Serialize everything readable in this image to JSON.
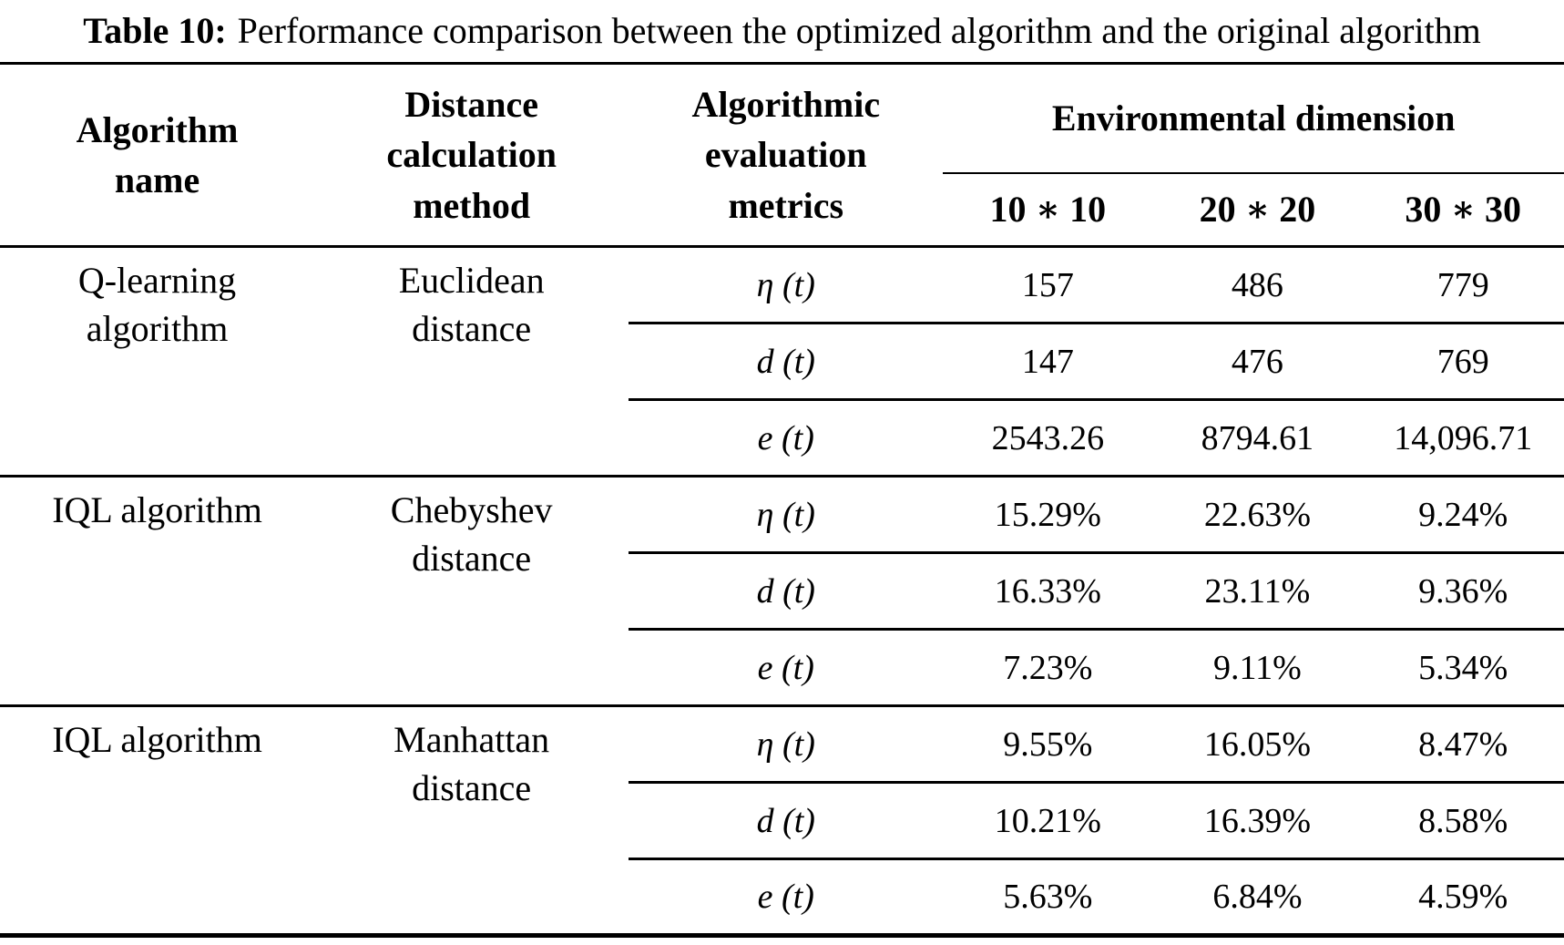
{
  "title": {
    "label": "Table 10:",
    "text": "Performance comparison between the optimized algorithm and the original algorithm"
  },
  "table": {
    "headers": {
      "algorithm_name": "Algorithm name",
      "distance_method": "Distance calculation method",
      "metrics": "Algorithmic evaluation metrics",
      "env_dimension": "Environmental dimension",
      "dims": [
        "10 ∗ 10",
        "20 ∗ 20",
        "30 ∗ 30"
      ]
    },
    "groups": [
      {
        "name": "Q-learning algorithm",
        "distance": "Euclidean distance",
        "rows": [
          {
            "metric": "η (t)",
            "values": [
              "157",
              "486",
              "779"
            ]
          },
          {
            "metric": "d (t)",
            "values": [
              "147",
              "476",
              "769"
            ]
          },
          {
            "metric": "e (t)",
            "values": [
              "2543.26",
              "8794.61",
              "14,096.71"
            ]
          }
        ]
      },
      {
        "name": "IQL algorithm",
        "distance": "Chebyshev distance",
        "rows": [
          {
            "metric": "η (t)",
            "values": [
              "15.29%",
              "22.63%",
              "9.24%"
            ]
          },
          {
            "metric": "d (t)",
            "values": [
              "16.33%",
              "23.11%",
              "9.36%"
            ]
          },
          {
            "metric": "e (t)",
            "values": [
              "7.23%",
              "9.11%",
              "5.34%"
            ]
          }
        ]
      },
      {
        "name": "IQL algorithm",
        "distance": "Manhattan distance",
        "rows": [
          {
            "metric": "η (t)",
            "values": [
              "9.55%",
              "16.05%",
              "8.47%"
            ]
          },
          {
            "metric": "d (t)",
            "values": [
              "10.21%",
              "16.39%",
              "8.58%"
            ]
          },
          {
            "metric": "e (t)",
            "values": [
              "5.63%",
              "6.84%",
              "4.59%"
            ]
          }
        ]
      }
    ]
  },
  "colors": {
    "text": "#000000",
    "background": "#ffffff",
    "rule": "#000000"
  }
}
